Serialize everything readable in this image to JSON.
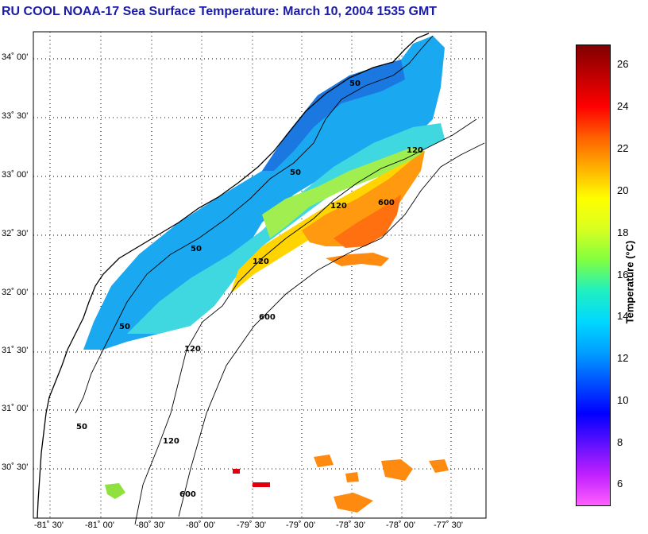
{
  "title": "RU COOL  NOAA-17  Sea Surface Temperature:  March 10, 2004 1535 GMT",
  "latitude_labels": [
    "34˚ 00'",
    "33˚ 30'",
    "33˚ 00'",
    "32˚ 30'",
    "32˚ 00'",
    "31˚ 30'",
    "31˚ 00'",
    "30˚ 30'"
  ],
  "longitude_labels": [
    "-81˚ 30'",
    "-81˚ 00'",
    "-80˚ 30'",
    "-80˚ 00'",
    "-79˚ 30'",
    "-79˚ 00'",
    "-78˚ 30'",
    "-78˚ 00'",
    "-77˚ 30'"
  ],
  "bathymetry_labels": [
    "50",
    "50",
    "50",
    "50",
    "50",
    "120",
    "120",
    "120",
    "120",
    "120",
    "600",
    "600",
    "600"
  ],
  "colorbar": {
    "label": "Temperature (°C)",
    "min": 5,
    "max": 27,
    "ticks": [
      "26",
      "24",
      "22",
      "20",
      "18",
      "16",
      "14",
      "12",
      "10",
      "8",
      "6"
    ],
    "colors": [
      "#ff60ff",
      "#c020ff",
      "#6010ff",
      "#0000ff",
      "#0050ff",
      "#00a0ff",
      "#00d8ff",
      "#20f0c0",
      "#80ff40",
      "#d8ff20",
      "#ffff00",
      "#ffb000",
      "#ff6000",
      "#ff0000",
      "#c00000",
      "#800000"
    ]
  }
}
